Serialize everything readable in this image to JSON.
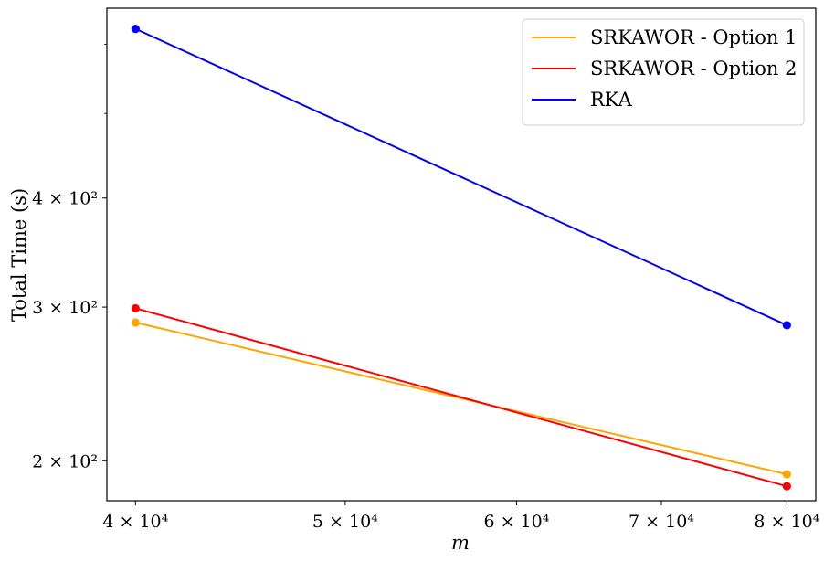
{
  "chart_data": {
    "type": "line",
    "xscale": "log",
    "yscale": "log",
    "xlabel": "m",
    "ylabel": "Total Time (s)",
    "xlim": [
      38800,
      82500
    ],
    "ylim": [
      180,
      660
    ],
    "x": [
      40000,
      80000
    ],
    "series": [
      {
        "name": "SRKAWOR - Option 1",
        "color": "#FFA500",
        "values": [
          288,
          193
        ]
      },
      {
        "name": "SRKAWOR - Option 2",
        "color": "#FF0000",
        "values": [
          299,
          187
        ]
      },
      {
        "name": "RKA",
        "color": "#0000FF",
        "values": [
          625,
          286
        ]
      }
    ],
    "x_ticks": [
      {
        "value": 40000,
        "label": "4 × 10⁴"
      },
      {
        "value": 50000,
        "label": "5 × 10⁴"
      },
      {
        "value": 60000,
        "label": "6 × 10⁴"
      },
      {
        "value": 70000,
        "label": "7 × 10⁴"
      },
      {
        "value": 80000,
        "label": "8 × 10⁴"
      }
    ],
    "y_ticks": [
      {
        "value": 200,
        "label": "2 × 10²"
      },
      {
        "value": 300,
        "label": "3 × 10²"
      },
      {
        "value": 400,
        "label": "4 × 10²"
      }
    ],
    "y_minor_ticks": [
      500,
      600
    ],
    "legend_position": "top-right",
    "grid": false
  }
}
